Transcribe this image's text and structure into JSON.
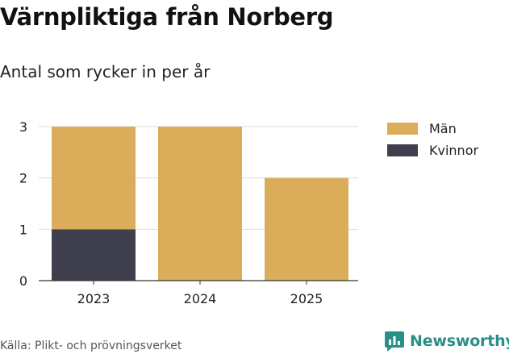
{
  "header": {
    "title": "Värnpliktiga från Norberg",
    "subtitle": "Antal som rycker in per år"
  },
  "footer": {
    "source": "Källa: Plikt- och prövningsverket",
    "brand": "Newsworthy"
  },
  "colors": {
    "Män": "#dbad5b",
    "Kvinnor": "#403f4d",
    "brand": "#2a8f87"
  },
  "chart_data": {
    "type": "bar",
    "stacked": true,
    "categories": [
      "2023",
      "2024",
      "2025"
    ],
    "series": [
      {
        "name": "Kvinnor",
        "values": [
          1,
          0,
          0
        ]
      },
      {
        "name": "Män",
        "values": [
          2,
          3,
          2
        ]
      }
    ],
    "legend_order": [
      "Män",
      "Kvinnor"
    ],
    "ylim": [
      0,
      3
    ],
    "yticks": [
      "0",
      "1",
      "2",
      "3"
    ],
    "grid": true,
    "legend_position": "right"
  }
}
